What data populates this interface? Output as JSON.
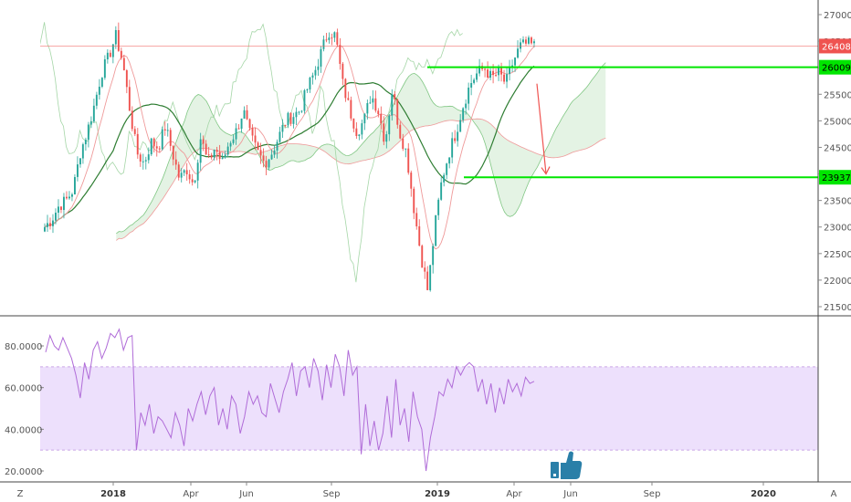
{
  "chart_data": [
    {
      "type": "candlestick",
      "title": "",
      "price_axis": {
        "ticks": [
          21500,
          22000,
          22500,
          23000,
          23500,
          24000,
          24500,
          25000,
          25500,
          26000,
          26500,
          27000
        ],
        "tick_labels": [
          "21500",
          "22000",
          "22500",
          "23000",
          "23500",
          "24000",
          "24500",
          "25000",
          "25500",
          "26000",
          "26500",
          "27000"
        ],
        "range": [
          21320,
          27170
        ]
      },
      "time_axis": {
        "labels": [
          "2018",
          "Apr",
          "Jun",
          "Sep",
          "2019",
          "Apr",
          "Jun",
          "Sep",
          "2020"
        ],
        "year_labels": [
          "2018",
          "2019",
          "2020"
        ]
      },
      "close_path": [
        23000,
        23150,
        23400,
        23500,
        23700,
        24400,
        24800,
        25300,
        25900,
        26200,
        26600,
        26100,
        25200,
        24400,
        24200,
        24600,
        24500,
        24900,
        24400,
        23900,
        24100,
        23800,
        24700,
        24200,
        24500,
        24200,
        24600,
        24800,
        25200,
        24700,
        24400,
        24200,
        24400,
        24700,
        25000,
        25100,
        25200,
        25600,
        25900,
        26300,
        26700,
        26600,
        25700,
        25200,
        24800,
        25000,
        25500,
        25200,
        24600,
        25600,
        24800,
        24400,
        23400,
        22500,
        21800,
        23000,
        23900,
        24400,
        24800,
        25300,
        25700,
        25900,
        26000,
        25800,
        25900,
        25700,
        26100,
        26400,
        26450,
        26410
      ],
      "horizontal_lines": [
        {
          "price": 26408,
          "label": "26408",
          "color": "#ef5350"
        },
        {
          "price": 26009,
          "label": "26009",
          "color": "#00e600"
        },
        {
          "price": 23937,
          "label": "23937",
          "color": "#00e600"
        }
      ],
      "arrow": {
        "from_price": 25700,
        "to_price": 24000,
        "color": "#ef5350"
      }
    },
    {
      "type": "line",
      "title": "",
      "series": [
        {
          "values": [
            77,
            85,
            80,
            78,
            84,
            79,
            74,
            66,
            55,
            72,
            64,
            78,
            82,
            74,
            79,
            86,
            84,
            88,
            78,
            84,
            85,
            30,
            48,
            42,
            52,
            38,
            46,
            44,
            40,
            36,
            48,
            42,
            32,
            50,
            44,
            52,
            58,
            47,
            56,
            60,
            42,
            50,
            40,
            56,
            52,
            38,
            46,
            58,
            52,
            56,
            48,
            46,
            62,
            55,
            48,
            58,
            64,
            72,
            56,
            68,
            70,
            60,
            74,
            68,
            54,
            71,
            60,
            76,
            70,
            56,
            78,
            66,
            70,
            28,
            52,
            32,
            44,
            30,
            38,
            56,
            36,
            64,
            42,
            50,
            34,
            58,
            46,
            40,
            20,
            36,
            46,
            58,
            56,
            64,
            60,
            70,
            66,
            70,
            72,
            70,
            58,
            64,
            52,
            62,
            48,
            60,
            52,
            64,
            58,
            62,
            56,
            65,
            62,
            63
          ],
          "color": "#b06cd8"
        }
      ],
      "y_axis": {
        "ticks": [
          20,
          40,
          60,
          80
        ],
        "tick_labels": [
          "20.0000",
          "40.0000",
          "60.0000",
          "80.0000"
        ],
        "range": [
          15.2,
          94.8
        ]
      },
      "bands": {
        "upper": 70,
        "lower": 30
      }
    }
  ],
  "corner_labels": {
    "left": "Z",
    "right": "A"
  },
  "colors": {
    "up": "#26a69a",
    "down": "#ef5350",
    "rsi_band_fill": "#e9d8fb",
    "rsi_line": "#b06cd8",
    "level_green": "#00e600"
  },
  "icons": {
    "watermark": "thumbs-up-icon"
  }
}
